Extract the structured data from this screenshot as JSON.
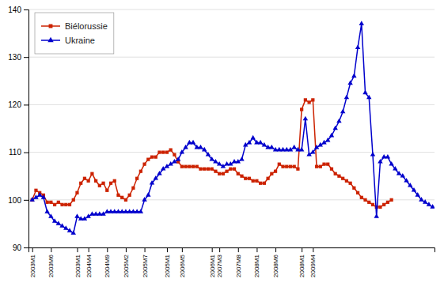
{
  "chart_data": {
    "type": "line",
    "xlim": [
      -1,
      107.5
    ],
    "xticks": [
      {
        "value": 0,
        "label": "2003M1"
      },
      {
        "value": 5,
        "label": "2003M6"
      },
      {
        "value": 12,
        "label": "2003M1"
      },
      {
        "value": 15,
        "label": "2004M4"
      },
      {
        "value": 20,
        "label": "2004M9"
      },
      {
        "value": 25,
        "label": "2005M2"
      },
      {
        "value": 30,
        "label": "2005M7"
      },
      {
        "value": 36,
        "label": "2005M1"
      },
      {
        "value": 40,
        "label": "2006M5"
      },
      {
        "value": 48,
        "label": "2006M1"
      },
      {
        "value": 50,
        "label": "2007M3"
      },
      {
        "value": 55,
        "label": "2007M8"
      },
      {
        "value": 60,
        "label": "2008M1"
      },
      {
        "value": 65,
        "label": "2008M6"
      },
      {
        "value": 72,
        "label": "2008M1"
      },
      {
        "value": 75,
        "label": "2009M4"
      }
    ],
    "ylim": [
      90,
      140
    ],
    "yticks": [
      90,
      100,
      110,
      120,
      130,
      140
    ],
    "grid": true,
    "legend": "upper left",
    "series": [
      {
        "name": "Biélorussie",
        "color": "#cc2200",
        "marker": "square",
        "x": [
          0,
          1,
          2,
          3,
          4,
          5,
          6,
          7,
          8,
          9,
          10,
          11,
          12,
          13,
          14,
          15,
          16,
          17,
          18,
          19,
          20,
          21,
          22,
          23,
          24,
          25,
          26,
          27,
          28,
          29,
          30,
          31,
          32,
          33,
          34,
          35,
          36,
          37,
          38,
          39,
          40,
          41,
          42,
          43,
          44,
          45,
          46,
          47,
          48,
          49,
          50,
          51,
          52,
          53,
          54,
          55,
          56,
          57,
          58,
          59,
          60,
          61,
          62,
          63,
          64,
          65,
          66,
          67,
          68,
          69,
          70,
          71,
          72,
          73,
          74,
          75,
          76,
          77,
          78,
          79,
          80,
          81,
          82,
          83,
          84,
          85,
          86,
          87,
          88,
          89,
          90,
          91,
          92,
          93,
          94,
          95,
          96
        ],
        "values": [
          100.0,
          102.0,
          101.5,
          101.0,
          99.5,
          99.5,
          99.0,
          99.5,
          99.0,
          99.0,
          99.0,
          100.0,
          101.5,
          103.5,
          104.5,
          104.0,
          105.5,
          104.0,
          103.0,
          103.5,
          102.0,
          103.5,
          104.0,
          101.0,
          100.5,
          100.0,
          101.0,
          102.5,
          104.5,
          106.0,
          107.5,
          108.5,
          109.0,
          109.0,
          110.0,
          110.0,
          110.0,
          110.5,
          109.5,
          108.0,
          107.0,
          107.0,
          107.0,
          107.0,
          107.0,
          106.5,
          106.5,
          106.5,
          106.5,
          106.0,
          105.5,
          105.5,
          106.0,
          106.5,
          106.5,
          105.5,
          105.0,
          104.5,
          104.5,
          104.0,
          104.0,
          103.5,
          103.5,
          104.5,
          105.5,
          106.0,
          107.5,
          107.0,
          107.0,
          107.0,
          107.0,
          106.5,
          119.0,
          121.0,
          120.5,
          121.0,
          107.0,
          107.0,
          107.5,
          107.5,
          106.5,
          105.5,
          105.0,
          104.5,
          104.0,
          103.5,
          102.5,
          101.5,
          100.5,
          100.0,
          99.5,
          99.0,
          98.5,
          98.5,
          99.0,
          99.5,
          100.0
        ]
      },
      {
        "name": "Ukraine",
        "color": "#0000cc",
        "marker": "triangle",
        "x": [
          0,
          1,
          2,
          3,
          4,
          5,
          6,
          7,
          8,
          9,
          10,
          11,
          12,
          13,
          14,
          15,
          16,
          17,
          18,
          19,
          20,
          21,
          22,
          23,
          24,
          25,
          26,
          27,
          28,
          29,
          30,
          31,
          32,
          33,
          34,
          35,
          36,
          37,
          38,
          39,
          40,
          41,
          42,
          43,
          44,
          45,
          46,
          47,
          48,
          49,
          50,
          51,
          52,
          53,
          54,
          55,
          56,
          57,
          58,
          59,
          60,
          61,
          62,
          63,
          64,
          65,
          66,
          67,
          68,
          69,
          70,
          71,
          72,
          73,
          74,
          75,
          76,
          77,
          78,
          79,
          80,
          81,
          82,
          83,
          84,
          85,
          86,
          87,
          88,
          89,
          90,
          91,
          92,
          93,
          94,
          95,
          96,
          97,
          98,
          99,
          100,
          101,
          102,
          103,
          104,
          105,
          106,
          107
        ],
        "values": [
          100.0,
          100.5,
          101.0,
          100.5,
          97.5,
          96.5,
          95.5,
          95.0,
          94.5,
          94.0,
          93.5,
          93.0,
          96.5,
          96.0,
          96.0,
          96.5,
          97.0,
          97.0,
          97.0,
          97.0,
          97.5,
          97.5,
          97.5,
          97.5,
          97.5,
          97.5,
          97.5,
          97.5,
          97.5,
          97.5,
          100.0,
          101.0,
          103.5,
          104.5,
          105.5,
          106.5,
          107.0,
          107.5,
          108.0,
          108.5,
          110.0,
          111.0,
          112.0,
          112.0,
          111.0,
          111.0,
          110.5,
          109.5,
          108.5,
          108.0,
          107.5,
          107.0,
          107.5,
          107.5,
          108.0,
          108.0,
          108.5,
          111.5,
          112.0,
          113.0,
          112.0,
          112.0,
          111.5,
          111.0,
          111.0,
          110.5,
          110.5,
          110.5,
          110.5,
          110.5,
          111.0,
          110.5,
          110.5,
          117.0,
          109.5,
          110.0,
          111.0,
          111.5,
          112.0,
          112.5,
          113.5,
          115.0,
          116.5,
          118.5,
          121.5,
          124.5,
          126.0,
          132.0,
          137.0,
          122.5,
          121.5,
          109.5,
          96.5,
          108.0,
          109.0,
          109.0,
          107.5,
          106.5,
          105.5,
          105.0,
          104.0,
          103.0,
          102.0,
          101.0,
          100.0,
          99.5,
          99.0,
          98.5
        ]
      }
    ]
  }
}
